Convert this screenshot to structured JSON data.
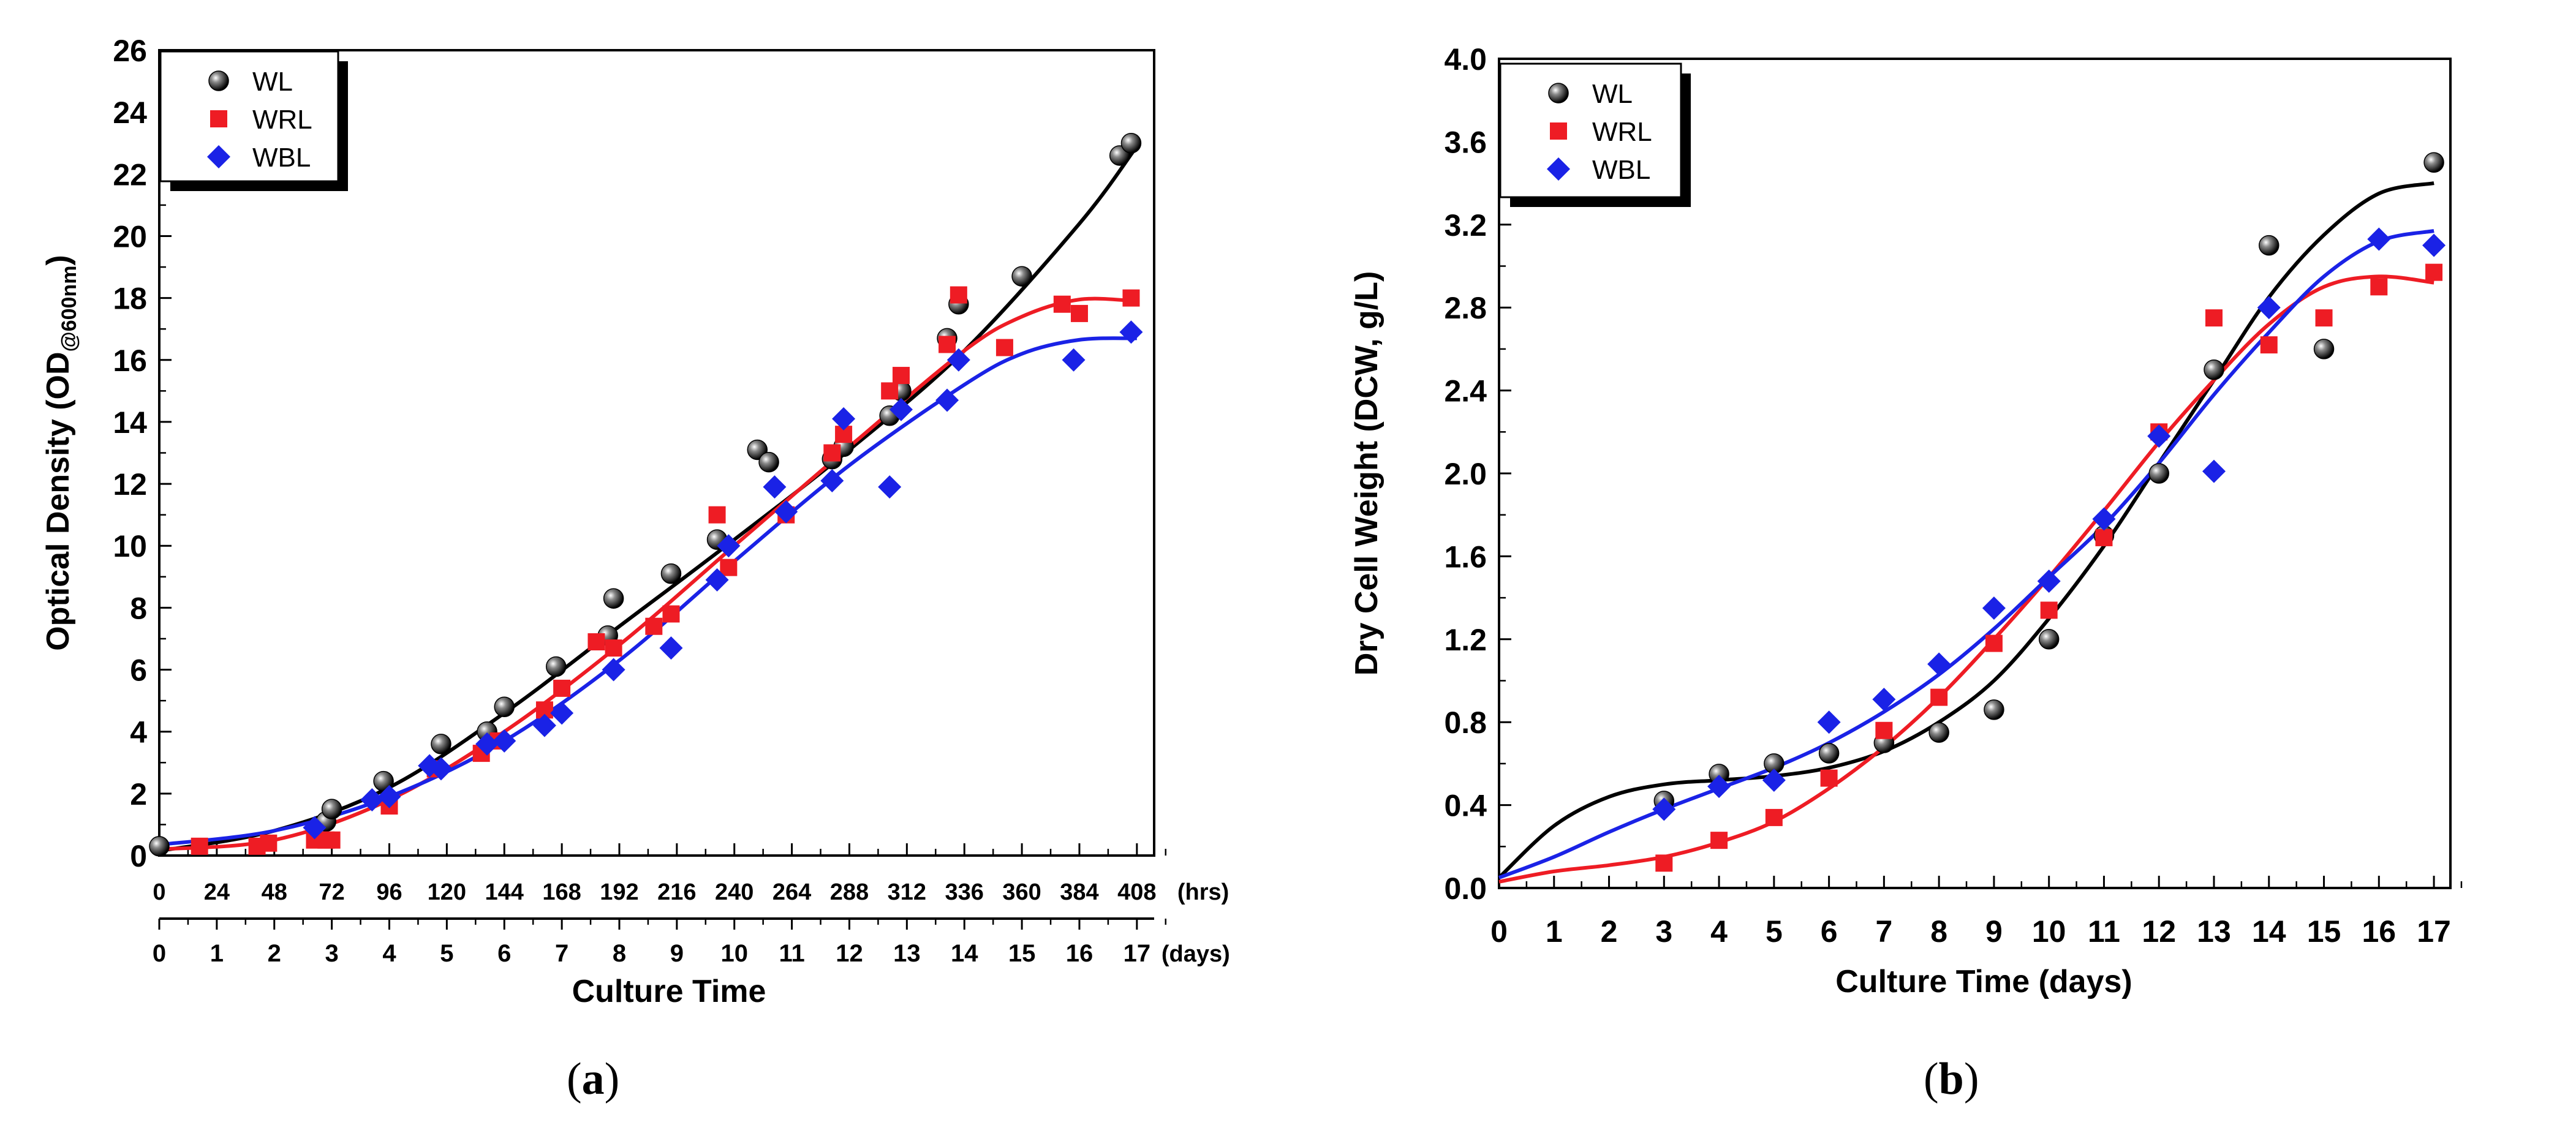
{
  "chart_data": [
    {
      "id": "a",
      "type": "scatter",
      "caption": "a",
      "ylabel": "Optical Density (OD",
      "ylabel_sub": "@600nm",
      "ylabel_close": ")",
      "xlabel": "Culture Time",
      "x_top_unit": "(hrs)",
      "x_bottom_unit": "(days)",
      "x_hours_ticks": [
        "0",
        "24",
        "48",
        "72",
        "96",
        "120",
        "144",
        "168",
        "192",
        "216",
        "240",
        "264",
        "288",
        "312",
        "336",
        "360",
        "384",
        "408"
      ],
      "x_days_ticks": [
        "0",
        "1",
        "2",
        "3",
        "4",
        "5",
        "6",
        "7",
        "8",
        "9",
        "10",
        "11",
        "12",
        "13",
        "14",
        "15",
        "16",
        "17"
      ],
      "xlim": [
        0,
        17.3
      ],
      "ylim": [
        0,
        26
      ],
      "y_ticks": [
        "0",
        "2",
        "4",
        "6",
        "8",
        "10",
        "12",
        "14",
        "16",
        "18",
        "20",
        "22",
        "24",
        "26"
      ],
      "colors": {
        "WL": "#000000",
        "WRL": "#ee1c24",
        "WBL": "#1a22e6"
      },
      "legend": [
        "WL",
        "WRL",
        "WBL"
      ],
      "series": [
        {
          "name": "WL",
          "marker": "sphere",
          "x": [
            0,
            2.9,
            3.0,
            3.9,
            4.9,
            5.7,
            6.0,
            6.9,
            7.8,
            7.9,
            8.9,
            9.7,
            10.4,
            10.6,
            11.7,
            11.9,
            12.7,
            12.9,
            13.7,
            13.9,
            15.0,
            16.7,
            16.9
          ],
          "y": [
            0.3,
            1.1,
            1.5,
            2.4,
            3.6,
            4.0,
            4.8,
            6.1,
            7.1,
            8.3,
            9.1,
            10.2,
            13.1,
            12.7,
            12.8,
            13.2,
            14.2,
            15.0,
            16.7,
            17.8,
            18.7,
            22.6,
            23.0
          ]
        },
        {
          "name": "WRL",
          "marker": "square",
          "x": [
            0.7,
            1.7,
            1.9,
            2.7,
            2.9,
            3.0,
            4.0,
            4.8,
            5.6,
            5.9,
            6.7,
            7.0,
            7.6,
            7.9,
            8.6,
            8.9,
            9.7,
            9.9,
            10.9,
            11.7,
            11.9,
            12.7,
            12.9,
            13.7,
            13.9,
            14.7,
            15.7,
            16.0,
            16.9
          ],
          "y": [
            0.3,
            0.3,
            0.4,
            0.5,
            0.5,
            0.5,
            1.6,
            2.8,
            3.3,
            3.7,
            4.7,
            5.4,
            6.9,
            6.7,
            7.4,
            7.8,
            11.0,
            9.3,
            11.0,
            13.0,
            13.6,
            15.0,
            15.5,
            16.5,
            18.1,
            16.4,
            17.8,
            17.5,
            18.0
          ]
        },
        {
          "name": "WBL",
          "marker": "diamond",
          "x": [
            2.7,
            3.7,
            4.0,
            4.7,
            4.9,
            5.7,
            6.0,
            6.7,
            7.0,
            7.9,
            8.9,
            9.7,
            9.9,
            10.7,
            10.9,
            11.7,
            11.9,
            12.7,
            12.9,
            13.7,
            13.9,
            15.9,
            16.9
          ],
          "y": [
            0.9,
            1.8,
            1.9,
            2.9,
            2.8,
            3.6,
            3.7,
            4.2,
            4.6,
            6.0,
            6.7,
            8.9,
            10.0,
            11.9,
            11.1,
            12.1,
            14.1,
            11.9,
            14.4,
            14.7,
            16.0,
            16.0,
            16.9
          ]
        }
      ],
      "fits": [
        {
          "name": "WL",
          "x": [
            0,
            2,
            4,
            6,
            8,
            10,
            12,
            14,
            16,
            17
          ],
          "y": [
            0.15,
            0.8,
            2.2,
            4.6,
            7.4,
            10.2,
            13.1,
            16.3,
            20.4,
            22.9
          ]
        },
        {
          "name": "WRL",
          "x": [
            0,
            2,
            4,
            6,
            8,
            10,
            12,
            14,
            15,
            16,
            17
          ],
          "y": [
            0.2,
            0.5,
            1.8,
            4.0,
            6.8,
            10.0,
            13.2,
            16.3,
            17.4,
            17.95,
            17.9
          ]
        },
        {
          "name": "WBL",
          "x": [
            0,
            2,
            4,
            6,
            8,
            10,
            12,
            14,
            15,
            16,
            17
          ],
          "y": [
            0.35,
            0.8,
            1.9,
            3.7,
            6.3,
            9.5,
            12.6,
            15.2,
            16.2,
            16.65,
            16.7
          ]
        }
      ]
    },
    {
      "id": "b",
      "type": "scatter",
      "caption": "b",
      "ylabel": "Dry Cell Weight (DCW, g/L)",
      "xlabel": "Culture Time (days)",
      "x_ticks": [
        "0",
        "1",
        "2",
        "3",
        "4",
        "5",
        "6",
        "7",
        "8",
        "9",
        "10",
        "11",
        "12",
        "13",
        "14",
        "15",
        "16",
        "17"
      ],
      "xlim": [
        0,
        17.3
      ],
      "ylim": [
        0,
        4.0
      ],
      "y_ticks": [
        "0.0",
        "0.4",
        "0.8",
        "1.2",
        "1.6",
        "2.0",
        "2.4",
        "2.8",
        "3.2",
        "3.6",
        "4.0"
      ],
      "colors": {
        "WL": "#000000",
        "WRL": "#ee1c24",
        "WBL": "#1a22e6"
      },
      "legend": [
        "WL",
        "WRL",
        "WBL"
      ],
      "series": [
        {
          "name": "WL",
          "marker": "sphere",
          "x": [
            3,
            4,
            5,
            6,
            7,
            8,
            9,
            10,
            11,
            12,
            13,
            14,
            15,
            17
          ],
          "y": [
            0.42,
            0.55,
            0.6,
            0.65,
            0.7,
            0.75,
            0.86,
            1.2,
            1.7,
            2.0,
            2.5,
            3.1,
            2.6,
            3.5
          ]
        },
        {
          "name": "WRL",
          "marker": "square",
          "x": [
            3,
            4,
            5,
            6,
            7,
            8,
            9,
            10,
            11,
            12,
            13,
            14,
            15,
            16,
            17
          ],
          "y": [
            0.12,
            0.23,
            0.34,
            0.53,
            0.76,
            0.92,
            1.18,
            1.34,
            1.69,
            2.2,
            2.75,
            2.62,
            2.75,
            2.9,
            2.97
          ]
        },
        {
          "name": "WBL",
          "marker": "diamond",
          "x": [
            3,
            4,
            5,
            6,
            7,
            8,
            9,
            10,
            11,
            12,
            13,
            14,
            16,
            17
          ],
          "y": [
            0.38,
            0.49,
            0.52,
            0.8,
            0.91,
            1.08,
            1.35,
            1.48,
            1.78,
            2.18,
            2.01,
            2.8,
            3.13,
            3.1
          ]
        }
      ],
      "fits": [
        {
          "name": "WL",
          "x": [
            0,
            1,
            2,
            3,
            4,
            5,
            6,
            7,
            8,
            9,
            10,
            11,
            12,
            13,
            14,
            15,
            16,
            17
          ],
          "y": [
            0.05,
            0.3,
            0.44,
            0.5,
            0.52,
            0.54,
            0.58,
            0.66,
            0.8,
            1.0,
            1.3,
            1.65,
            2.05,
            2.45,
            2.85,
            3.15,
            3.35,
            3.4
          ]
        },
        {
          "name": "WRL",
          "x": [
            0,
            1,
            2,
            3,
            4,
            5,
            6,
            7,
            8,
            9,
            10,
            11,
            12,
            13,
            14,
            15,
            16,
            17
          ],
          "y": [
            0.03,
            0.08,
            0.11,
            0.15,
            0.22,
            0.32,
            0.48,
            0.68,
            0.92,
            1.2,
            1.5,
            1.82,
            2.15,
            2.45,
            2.72,
            2.9,
            2.95,
            2.92
          ]
        },
        {
          "name": "WBL",
          "x": [
            0,
            1,
            2,
            3,
            4,
            5,
            6,
            7,
            8,
            9,
            10,
            11,
            12,
            13,
            14,
            15,
            16,
            17
          ],
          "y": [
            0.05,
            0.15,
            0.27,
            0.38,
            0.48,
            0.58,
            0.7,
            0.85,
            1.03,
            1.25,
            1.5,
            1.75,
            2.05,
            2.38,
            2.68,
            2.95,
            3.12,
            3.17
          ]
        }
      ]
    }
  ]
}
